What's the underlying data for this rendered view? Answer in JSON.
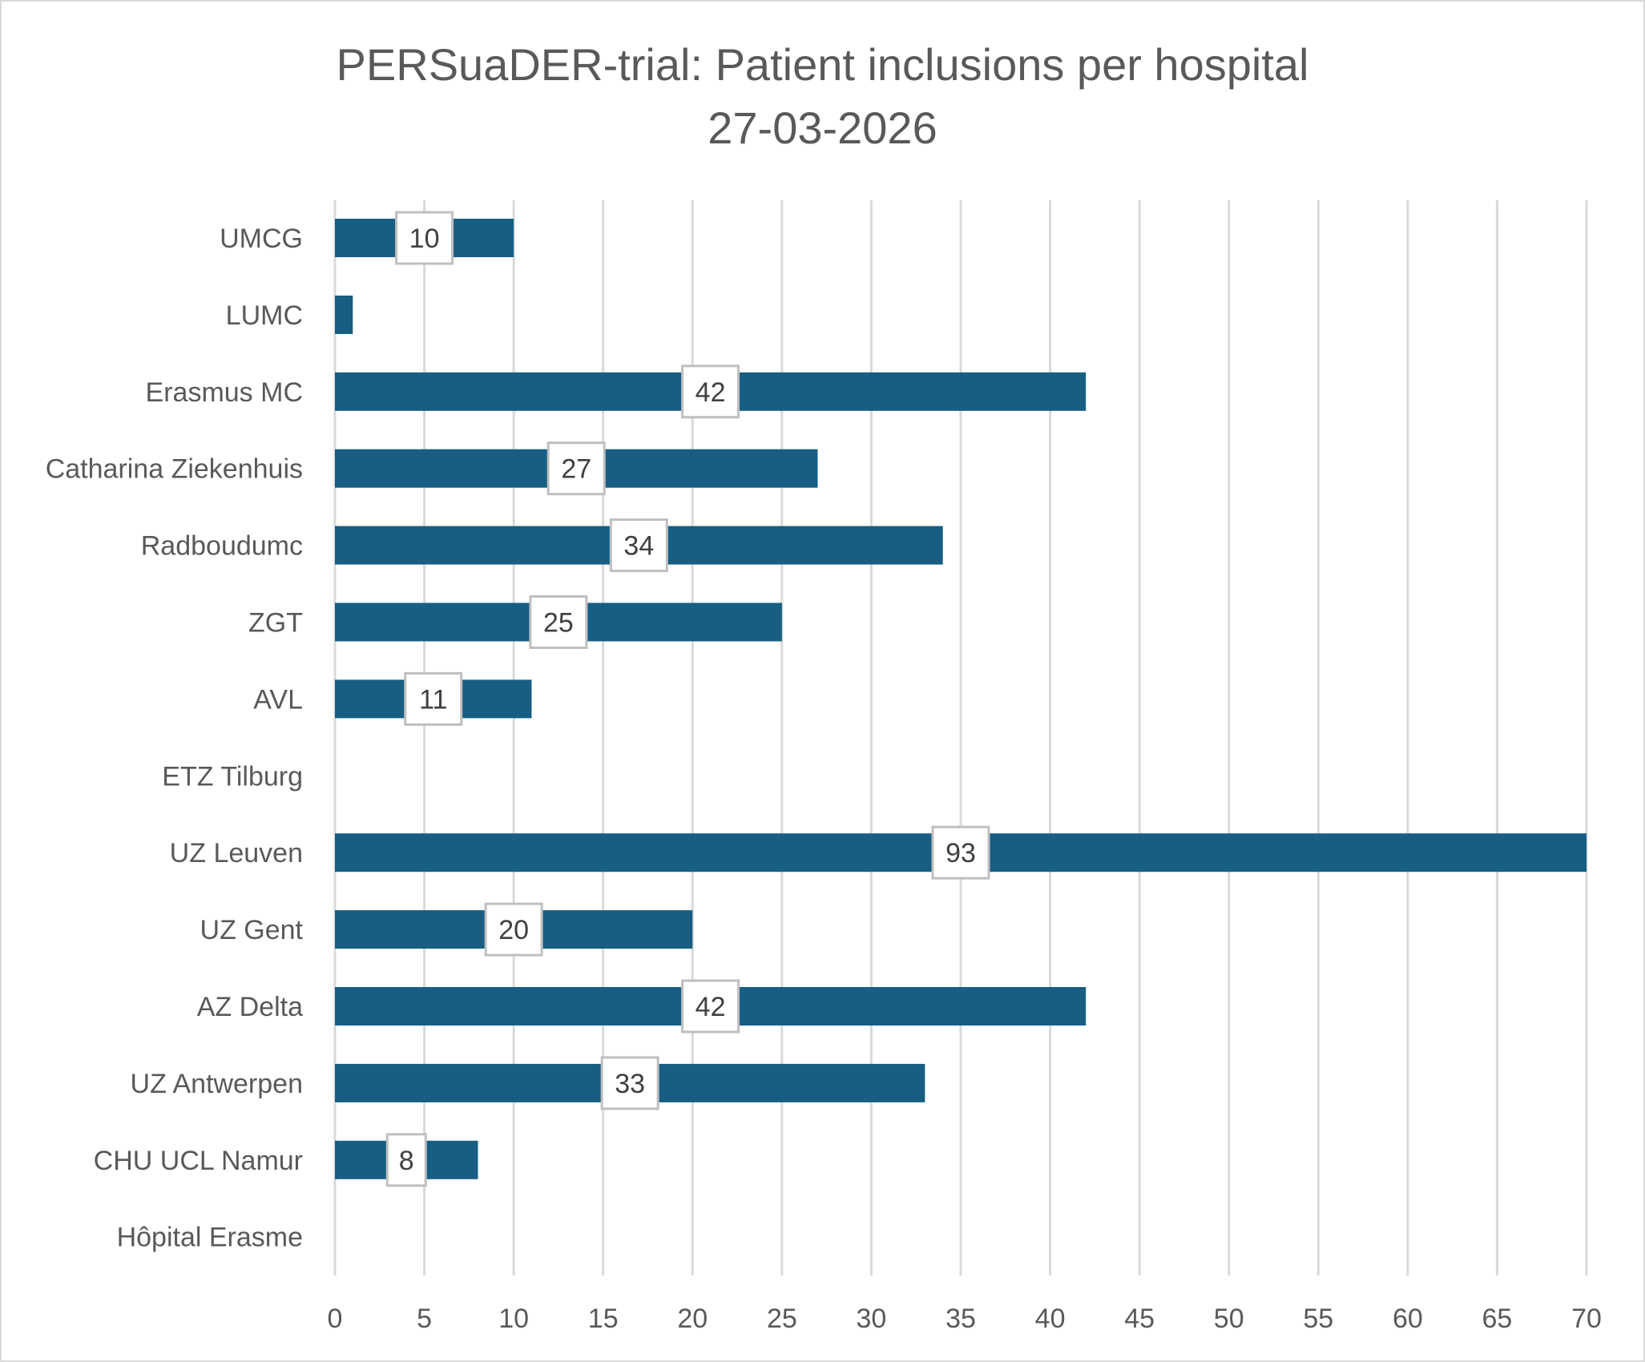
{
  "chart_data": {
    "type": "bar",
    "orientation": "horizontal",
    "title": "PERSuaDER-trial: Patient inclusions per hospital",
    "subtitle": "27-03-2026",
    "xlabel": "",
    "ylabel": "",
    "xlim": [
      0,
      70
    ],
    "x_ticks": [
      0,
      5,
      10,
      15,
      20,
      25,
      30,
      35,
      40,
      45,
      50,
      55,
      60,
      65,
      70
    ],
    "grid": "vertical",
    "legend": "none",
    "bar_color": "#175E82",
    "categories": [
      "UMCG",
      "LUMC",
      "Erasmus MC",
      "Catharina Ziekenhuis",
      "Radboudumc",
      "ZGT",
      "AVL",
      "ETZ Tilburg",
      "UZ Leuven",
      "UZ Gent",
      "AZ Delta",
      "UZ Antwerpen",
      "CHU UCL Namur",
      "Hôpital Erasme"
    ],
    "values": [
      10,
      1,
      42,
      27,
      34,
      25,
      11,
      0,
      93,
      20,
      42,
      33,
      8,
      0
    ],
    "data_labels": [
      "10",
      "",
      "42",
      "27",
      "34",
      "25",
      "11",
      "",
      "93",
      "20",
      "42",
      "33",
      "8",
      ""
    ]
  }
}
